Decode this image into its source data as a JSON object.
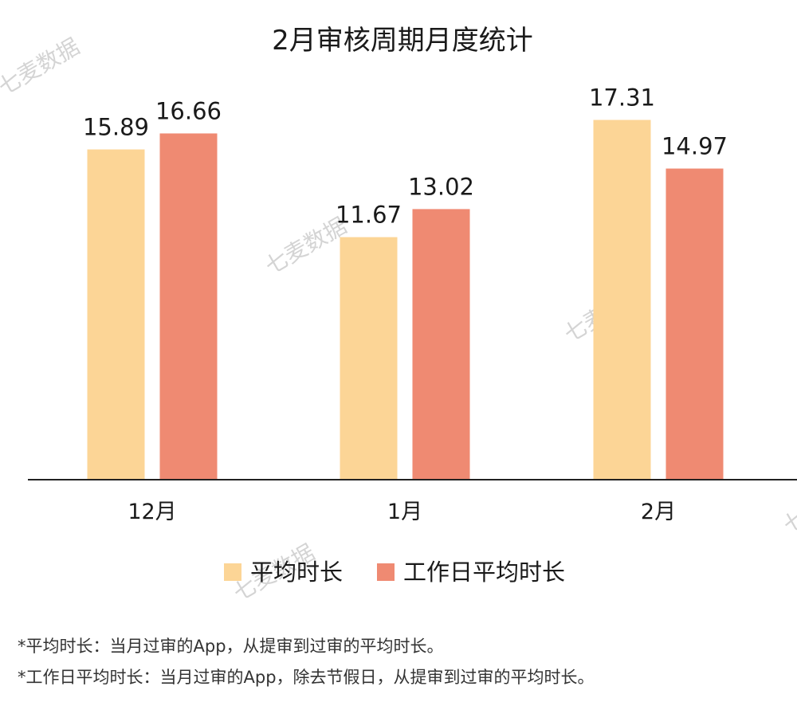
{
  "chart_data": {
    "type": "bar",
    "title": "2月审核周期月度统计",
    "categories": [
      "12月",
      "1月",
      "2月"
    ],
    "series": [
      {
        "name": "平均时长",
        "values": [
          15.89,
          11.67,
          17.31
        ],
        "color": "#FCD596"
      },
      {
        "name": "工作日平均时长",
        "values": [
          16.66,
          13.02,
          14.97
        ],
        "color": "#EF8A72"
      }
    ],
    "value_labels": [
      [
        "15.89",
        "11.67",
        "17.31"
      ],
      [
        "16.66",
        "13.02",
        "14.97"
      ]
    ],
    "ylim": [
      0,
      18
    ],
    "grid": false,
    "legend": "bottom-center"
  },
  "watermark": "七麦数据",
  "footnotes": [
    "*平均时长：当月过审的App，从提审到过审的平均时长。",
    "*工作日平均时长：当月过审的App，除去节假日，从提审到过审的平均时长。"
  ]
}
